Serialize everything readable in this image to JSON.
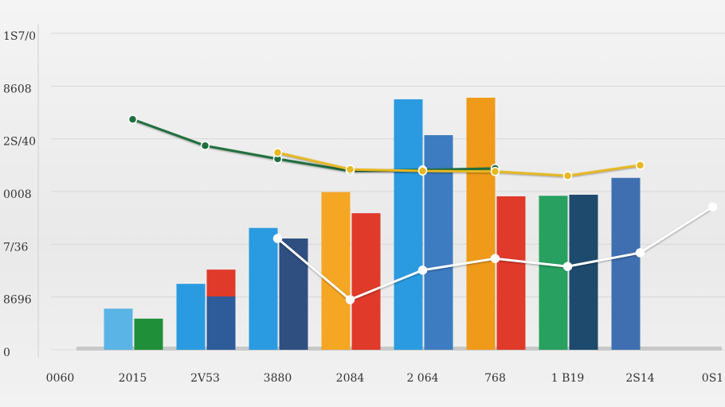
{
  "chart_data": {
    "type": "bar-line",
    "categories": [
      "0060",
      "2015",
      "2V53",
      "3880",
      "2084",
      "2 064",
      "768",
      "1 B19",
      "2S14",
      "0S1"
    ],
    "ylim": [
      0,
      6
    ],
    "yticks": [
      {
        "value": 0,
        "label": "0"
      },
      {
        "value": 1,
        "label": "8696"
      },
      {
        "value": 2,
        "label": "7/36"
      },
      {
        "value": 3,
        "label": "0008"
      },
      {
        "value": 4,
        "label": "2S/40"
      },
      {
        "value": 5,
        "label": "8608"
      },
      {
        "value": 6,
        "label": "1S7/0"
      }
    ],
    "grid": true,
    "bars": [
      {
        "colors": [
          null,
          "#5ab4e5",
          "#2a9be0",
          "#2a9be0",
          "#f5a623",
          "#2a9be0",
          "#f09a1a",
          "#27a060",
          "#3f6fb0",
          null
        ],
        "values": [
          null,
          0.78,
          1.25,
          2.31,
          2.99,
          4.75,
          4.78,
          2.92,
          3.26,
          null
        ]
      },
      {
        "colors": [
          null,
          "#1f8f3a",
          "#2e5b9a",
          "#2e4f80",
          "#e03a2a",
          "#3d7cc0",
          "#e03a2a",
          "#1e4a6e",
          null,
          null
        ],
        "values": [
          null,
          0.59,
          1.01,
          2.11,
          2.59,
          4.07,
          2.91,
          2.94,
          null,
          null
        ]
      },
      {
        "colors": [
          null,
          null,
          "#e03a2a",
          null,
          null,
          null,
          null,
          null,
          null,
          null
        ],
        "values": [
          null,
          null,
          0.51,
          null,
          null,
          null,
          null,
          null,
          null,
          null
        ],
        "stack_on": 1
      }
    ],
    "lines": [
      {
        "color": "#1f6f3f",
        "values": [
          null,
          4.37,
          3.87,
          3.62,
          3.39,
          3.41,
          3.44,
          null,
          null,
          null
        ]
      },
      {
        "color": "#e8b820",
        "values": [
          null,
          null,
          null,
          3.74,
          3.42,
          3.39,
          3.38,
          3.3,
          3.5,
          null
        ]
      },
      {
        "color": "#ffffff",
        "values": [
          null,
          null,
          null,
          2.11,
          0.95,
          1.51,
          1.73,
          1.58,
          1.84,
          2.71
        ]
      }
    ]
  }
}
